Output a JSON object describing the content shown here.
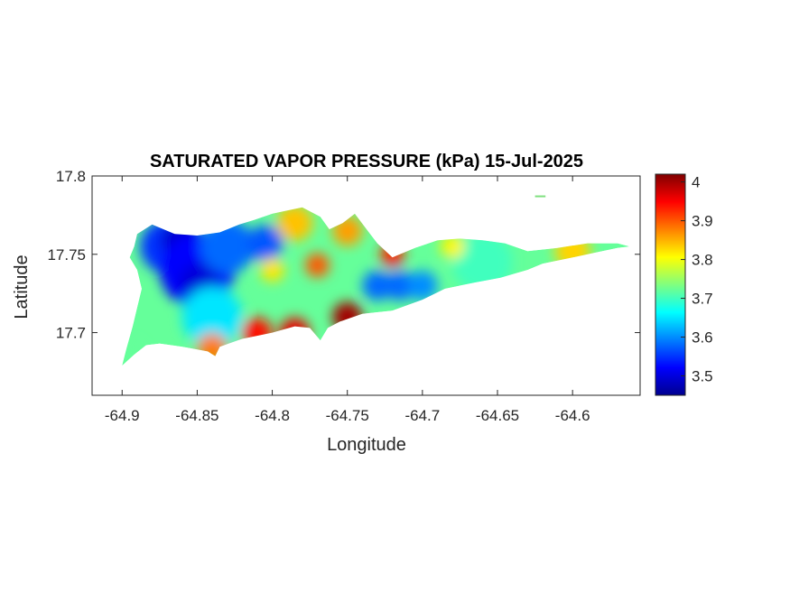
{
  "chart_data": {
    "type": "heatmap",
    "title": "SATURATED VAPOR PRESSURE (kPa) 15-Jul-2025",
    "xlabel": "Longitude",
    "ylabel": "Latitude",
    "xlim": [
      -64.92,
      -64.555
    ],
    "ylim": [
      17.66,
      17.8
    ],
    "x_ticks": [
      -64.9,
      -64.85,
      -64.8,
      -64.75,
      -64.7,
      -64.65,
      -64.6
    ],
    "x_tick_labels": [
      "-64.9",
      "-64.85",
      "-64.8",
      "-64.75",
      "-64.7",
      "-64.65",
      "-64.6"
    ],
    "y_ticks": [
      17.7,
      17.75,
      17.8
    ],
    "y_tick_labels": [
      "17.7",
      "17.75",
      "17.8"
    ],
    "grid": false,
    "colormap": "jet",
    "colorbar": {
      "min": 3.45,
      "max": 4.02,
      "ticks": [
        3.5,
        3.6,
        3.7,
        3.8,
        3.9,
        4
      ],
      "tick_labels": [
        "3.5",
        "3.6",
        "3.7",
        "3.8",
        "3.9",
        "4"
      ],
      "colors": [
        "#00008f",
        "#0000ff",
        "#00ffff",
        "#ffff00",
        "#ff0000",
        "#800000"
      ]
    },
    "island_outline": [
      [
        -64.9,
        17.679
      ],
      [
        -64.892,
        17.686
      ],
      [
        -64.884,
        17.692
      ],
      [
        -64.875,
        17.693
      ],
      [
        -64.86,
        17.691
      ],
      [
        -64.843,
        17.688
      ],
      [
        -64.838,
        17.685
      ],
      [
        -64.835,
        17.691
      ],
      [
        -64.82,
        17.696
      ],
      [
        -64.8,
        17.7
      ],
      [
        -64.785,
        17.704
      ],
      [
        -64.775,
        17.703
      ],
      [
        -64.768,
        17.695
      ],
      [
        -64.763,
        17.703
      ],
      [
        -64.755,
        17.707
      ],
      [
        -64.74,
        17.712
      ],
      [
        -64.72,
        17.714
      ],
      [
        -64.7,
        17.721
      ],
      [
        -64.685,
        17.728
      ],
      [
        -64.665,
        17.732
      ],
      [
        -64.648,
        17.735
      ],
      [
        -64.63,
        17.74
      ],
      [
        -64.62,
        17.744
      ],
      [
        -64.61,
        17.746
      ],
      [
        -64.59,
        17.75
      ],
      [
        -64.57,
        17.754
      ],
      [
        -64.562,
        17.755
      ],
      [
        -64.57,
        17.757
      ],
      [
        -64.59,
        17.757
      ],
      [
        -64.61,
        17.754
      ],
      [
        -64.63,
        17.752
      ],
      [
        -64.645,
        17.757
      ],
      [
        -64.66,
        17.759
      ],
      [
        -64.675,
        17.76
      ],
      [
        -64.69,
        17.759
      ],
      [
        -64.705,
        17.754
      ],
      [
        -64.72,
        17.748
      ],
      [
        -64.73,
        17.757
      ],
      [
        -64.738,
        17.767
      ],
      [
        -64.745,
        17.776
      ],
      [
        -64.753,
        17.77
      ],
      [
        -64.762,
        17.766
      ],
      [
        -64.768,
        17.774
      ],
      [
        -64.78,
        17.78
      ],
      [
        -64.8,
        17.776
      ],
      [
        -64.812,
        17.772
      ],
      [
        -64.822,
        17.769
      ],
      [
        -64.835,
        17.764
      ],
      [
        -64.85,
        17.762
      ],
      [
        -64.865,
        17.763
      ],
      [
        -64.875,
        17.767
      ],
      [
        -64.88,
        17.769
      ],
      [
        -64.89,
        17.763
      ],
      [
        -64.892,
        17.755
      ],
      [
        -64.895,
        17.748
      ],
      [
        -64.89,
        17.74
      ],
      [
        -64.887,
        17.728
      ],
      [
        -64.89,
        17.716
      ],
      [
        -64.893,
        17.704
      ],
      [
        -64.897,
        17.69
      ]
    ],
    "offshore_islet": [
      [
        -64.625,
        17.787
      ],
      [
        -64.618,
        17.787
      ]
    ],
    "field_centers": [
      {
        "lon": -64.87,
        "lat": 17.755,
        "value": 3.55,
        "radius_deg": 0.018
      },
      {
        "lon": -64.86,
        "lat": 17.758,
        "value": 3.49,
        "radius_deg": 0.014
      },
      {
        "lon": -64.85,
        "lat": 17.74,
        "value": 3.52,
        "radius_deg": 0.025
      },
      {
        "lon": -64.848,
        "lat": 17.731,
        "value": 3.5,
        "radius_deg": 0.014
      },
      {
        "lon": -64.83,
        "lat": 17.755,
        "value": 3.58,
        "radius_deg": 0.018
      },
      {
        "lon": -64.805,
        "lat": 17.757,
        "value": 3.57,
        "radius_deg": 0.012
      },
      {
        "lon": -64.84,
        "lat": 17.71,
        "value": 3.65,
        "radius_deg": 0.02
      },
      {
        "lon": -64.73,
        "lat": 17.73,
        "value": 3.58,
        "radius_deg": 0.01
      },
      {
        "lon": -64.715,
        "lat": 17.73,
        "value": 3.58,
        "radius_deg": 0.01
      },
      {
        "lon": -64.7,
        "lat": 17.73,
        "value": 3.6,
        "radius_deg": 0.01
      },
      {
        "lon": -64.66,
        "lat": 17.745,
        "value": 3.7,
        "radius_deg": 0.02
      },
      {
        "lon": -64.75,
        "lat": 17.71,
        "value": 4.0,
        "radius_deg": 0.01
      },
      {
        "lon": -64.785,
        "lat": 17.7,
        "value": 3.96,
        "radius_deg": 0.01
      },
      {
        "lon": -64.81,
        "lat": 17.7,
        "value": 3.94,
        "radius_deg": 0.01
      },
      {
        "lon": -64.84,
        "lat": 17.69,
        "value": 3.88,
        "radius_deg": 0.01
      },
      {
        "lon": -64.72,
        "lat": 17.75,
        "value": 3.93,
        "radius_deg": 0.008
      },
      {
        "lon": -64.77,
        "lat": 17.743,
        "value": 3.9,
        "radius_deg": 0.008
      },
      {
        "lon": -64.75,
        "lat": 17.765,
        "value": 3.86,
        "radius_deg": 0.01
      },
      {
        "lon": -64.785,
        "lat": 17.77,
        "value": 3.84,
        "radius_deg": 0.012
      },
      {
        "lon": -64.8,
        "lat": 17.74,
        "value": 3.82,
        "radius_deg": 0.008
      },
      {
        "lon": -64.68,
        "lat": 17.755,
        "value": 3.81,
        "radius_deg": 0.008
      },
      {
        "lon": -64.6,
        "lat": 17.752,
        "value": 3.83,
        "radius_deg": 0.012
      },
      {
        "lon": -64.895,
        "lat": 17.685,
        "value": 3.72,
        "radius_deg": 0.01
      }
    ],
    "background_value": 3.72
  }
}
